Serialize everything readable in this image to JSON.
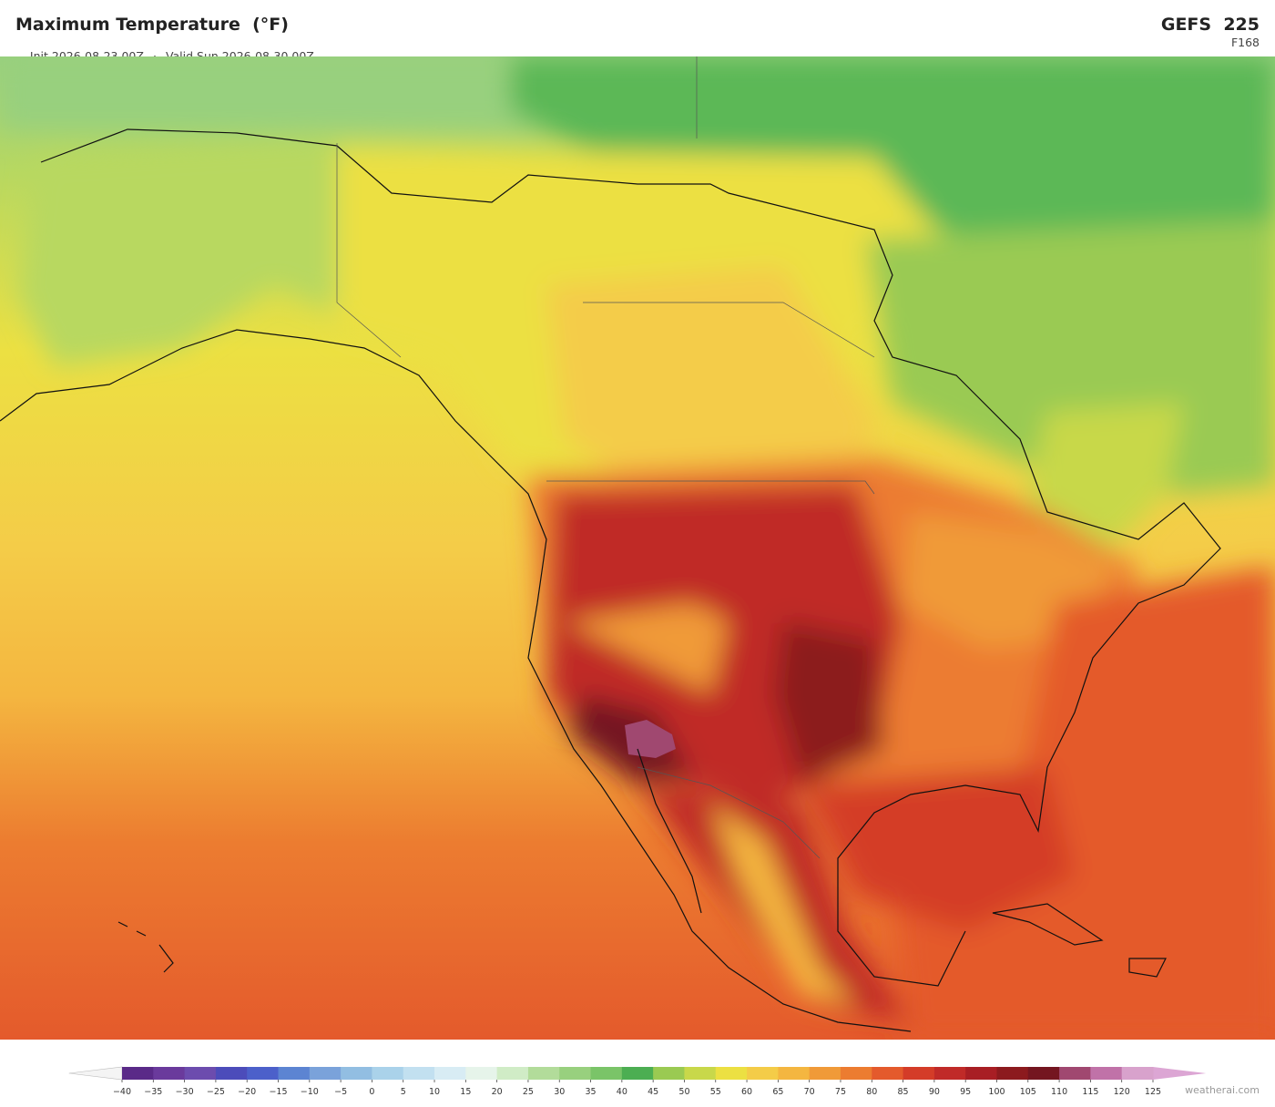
{
  "header": {
    "title": "Maximum Temperature  (°F)",
    "init": "Init 2026-08-23 00Z",
    "separator": "·",
    "valid": "Valid Sun 2026-08-30 00Z",
    "model": "GEFS  225",
    "forecast_hour": "F168"
  },
  "colorbar": {
    "ticks": [
      {
        "value": -40,
        "label": "−40"
      },
      {
        "value": -35,
        "label": "−35"
      },
      {
        "value": -30,
        "label": "−30"
      },
      {
        "value": -25,
        "label": "−25"
      },
      {
        "value": -20,
        "label": "−20"
      },
      {
        "value": -15,
        "label": "−15"
      },
      {
        "value": -10,
        "label": "−10"
      },
      {
        "value": -5,
        "label": "−5"
      },
      0,
      5,
      10,
      15,
      20,
      25,
      30,
      35,
      40,
      45,
      50,
      55,
      60,
      65,
      70,
      75,
      80,
      85,
      90,
      95,
      100,
      105,
      110,
      115,
      120,
      125
    ],
    "colors": [
      "#5a2a88",
      "#6a3a9c",
      "#6c4cae",
      "#4c4cba",
      "#4c60ca",
      "#5c84d2",
      "#7aa2da",
      "#92bee2",
      "#aad2ea",
      "#c2e0f0",
      "#d8ecf4",
      "#e6f4ea",
      "#d0ecc6",
      "#b2dc9a",
      "#98d07e",
      "#7ac468",
      "#4cae52",
      "#9aca52",
      "#c8d84a",
      "#ece042",
      "#f4cc48",
      "#f4b640",
      "#f09a38",
      "#ec7c30",
      "#e45a2c",
      "#d43c28",
      "#c02a28",
      "#a81e24",
      "#8c1a1e",
      "#741620",
      "#a04870",
      "#c072a8",
      "#d8a2cc"
    ],
    "under_color": "#f4f4f4",
    "over_color": "#dca6d4"
  },
  "footer": {
    "credit": "weatherai.com"
  }
}
